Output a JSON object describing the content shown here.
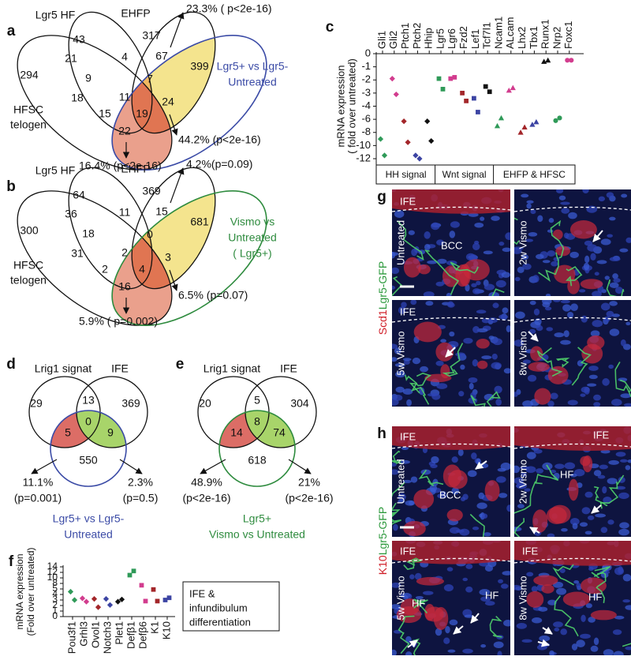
{
  "panels": {
    "a": {
      "label": "a",
      "sets": {
        "hf": "Lgr5 HF",
        "ehfp": "EHFP",
        "hfsc": [
          "HFSC",
          "telogen"
        ],
        "comparison": [
          "Lgr5+ vs Lgr5-",
          "Untreated"
        ]
      },
      "color": "#3b4ba6",
      "regions": [
        43,
        317,
        294,
        21,
        4,
        67,
        399,
        9,
        7,
        18,
        11,
        24,
        15,
        19,
        22
      ],
      "annotations": [
        "23.3% ( p<2e-16)",
        "44.2% (p<2e-16)",
        "16.4% (p<2e-16)"
      ]
    },
    "b": {
      "label": "b",
      "sets": {
        "hf": "Lgr5 HF",
        "ehfp": "EHFP",
        "hfsc": [
          "HFSC",
          "telogen"
        ],
        "comparison": [
          "Vismo vs",
          "Untreated",
          "( Lgr5+)"
        ]
      },
      "color": "#2e8b3e",
      "regions": [
        64,
        369,
        300,
        36,
        11,
        15,
        681,
        18,
        0,
        31,
        2,
        3,
        2,
        4,
        16
      ],
      "annotations": [
        "4.2%(p=0.09)",
        "6.5% (p=0.07)",
        "5.9% ( p=0.002)"
      ]
    },
    "d": {
      "label": "d",
      "sets": {
        "lrig1": "Lrig1 signat",
        "ife": "IFE",
        "comparison": [
          "Lgr5+ vs Lgr5-",
          "Untreated"
        ]
      },
      "color": "#3b4ba6",
      "regions": [
        29,
        13,
        369,
        0,
        5,
        9,
        550
      ],
      "annotations": [
        [
          "11.1%",
          "(p=0.001)"
        ],
        [
          "2.3%",
          "(p=0.5)"
        ]
      ]
    },
    "e": {
      "label": "e",
      "sets": {
        "lrig1": "Lrig1 signat",
        "ife": "IFE",
        "comparison": [
          "Lgr5+",
          "Vismo vs Untreated"
        ]
      },
      "color": "#2e8b3e",
      "regions": [
        20,
        5,
        304,
        8,
        14,
        74,
        618
      ],
      "annotations": [
        [
          "48.9%",
          "(p<2e-16)"
        ],
        [
          "21%",
          "(p<2e-16)"
        ]
      ]
    },
    "g": {
      "label": "g",
      "stain": [
        "Scd1",
        "Lgr5-GFP"
      ],
      "stain_colors": [
        "#d0202a",
        "#2e9a3e"
      ],
      "tiles": [
        {
          "condition": "Untreated",
          "labels": [
            "IFE",
            "BCC"
          ]
        },
        {
          "condition": "2w Vismo",
          "labels": []
        },
        {
          "condition": "5w Vismo",
          "labels": [
            "IFE"
          ]
        },
        {
          "condition": "8w Vismo",
          "labels": []
        }
      ]
    },
    "h": {
      "label": "h",
      "stain": [
        "K10",
        "Lgr5-GFP"
      ],
      "stain_colors": [
        "#d0202a",
        "#2e9a3e"
      ],
      "tiles": [
        {
          "condition": "Untreated",
          "labels": [
            "IFE",
            "BCC"
          ]
        },
        {
          "condition": "2w Vismo",
          "labels": [
            "IFE",
            "HF"
          ]
        },
        {
          "condition": "5w Vismo",
          "labels": [
            "IFE",
            "HF",
            "HF"
          ]
        },
        {
          "condition": "8w Vismo",
          "labels": [
            "IFE",
            "HF"
          ]
        }
      ]
    }
  },
  "chart_data": [
    {
      "type": "dot",
      "label": "c",
      "y_label": [
        "mRNA expression",
        "( fold over untreated)"
      ],
      "categories": [
        "Gli1",
        "Gli2",
        "Ptch1",
        "Ptch2",
        "Hhip",
        "Lgr5",
        "Lgr6",
        "Fzd2",
        "Lef1",
        "Tcf7l1",
        "Ncam1",
        "ALcam",
        "Lhx2",
        "Tbx1",
        "Runx1",
        "Nrp2",
        "Foxc1"
      ],
      "values": [
        [
          -9,
          -11.5
        ],
        [
          -1.9,
          -3.1
        ],
        [
          -6.3,
          -9.5
        ],
        [
          -11.5,
          -12
        ],
        [
          -6.3,
          -9.3
        ],
        [
          -1.9,
          -2.7
        ],
        [
          -1.9,
          -1.8
        ],
        [
          -3,
          -3.6
        ],
        [
          -3.4,
          -4.9
        ],
        [
          -2.5,
          -2.9
        ],
        [
          -7,
          -5.8
        ],
        [
          -2.8,
          -2.6
        ],
        [
          -8,
          -7.2
        ],
        [
          -6.8,
          -6.4
        ],
        [
          -0.6,
          -0.5
        ],
        [
          -6.2,
          -5.8
        ],
        [
          -0.5,
          -0.5
        ]
      ],
      "colors": [
        "#2f9a58",
        "#d23c8e",
        "#a3262a",
        "#3c44a3",
        "#111111",
        "#2f9a58",
        "#d23c8e",
        "#a3262a",
        "#3c44a3",
        "#111111",
        "#2f9a58",
        "#d23c8e",
        "#a3262a",
        "#3c44a3",
        "#111111",
        "#2f9a58",
        "#d23c8e"
      ],
      "markers": [
        "diamond",
        "diamond",
        "diamond",
        "diamond",
        "diamond",
        "square",
        "square",
        "square",
        "square",
        "square",
        "triangle",
        "triangle",
        "triangle",
        "triangle",
        "triangle",
        "circle",
        "circle"
      ],
      "ylim": [
        0,
        -12
      ],
      "yticks": [
        0,
        -1,
        -2,
        -3,
        -4,
        -6,
        -8,
        -10,
        -12
      ],
      "y_scale": "tick-spaced",
      "groups": [
        {
          "label": "HH signal",
          "categories": [
            "Gli1",
            "Gli2",
            "Ptch1",
            "Ptch2",
            "Hhip"
          ]
        },
        {
          "label": "Wnt signal",
          "categories": [
            "Lgr5",
            "Lgr6",
            "Fzd2",
            "Lef1",
            "Tcf7l1"
          ]
        },
        {
          "label": "EHFP & HFSC",
          "categories": [
            "Ncam1",
            "ALcam",
            "Lhx2",
            "Tbx1",
            "Runx1",
            "Nrp2",
            "Foxc1"
          ]
        }
      ]
    },
    {
      "type": "dot",
      "label": "f",
      "y_label": [
        "mRNA expression",
        "(Fold over untreated)"
      ],
      "categories": [
        "Pou3f1",
        "Grhl3",
        "Ovol1",
        "Notch3",
        "Plet1",
        "Defβ1",
        "Defβ6",
        "K1",
        "K10"
      ],
      "values": [
        [
          4.5,
          3
        ],
        [
          3.3,
          2.7
        ],
        [
          3.2,
          1.7
        ],
        [
          3.2,
          2.1
        ],
        [
          2.7,
          3.1
        ],
        [
          11,
          12.5
        ],
        [
          7,
          2.8
        ],
        [
          4.9,
          2.8
        ],
        [
          3,
          3.4
        ]
      ],
      "colors": [
        "#2f9a58",
        "#d23c8e",
        "#a3262a",
        "#3c44a3",
        "#111111",
        "#2f9a58",
        "#d23c8e",
        "#a3262a",
        "#3c44a3"
      ],
      "markers": [
        "diamond",
        "diamond",
        "diamond",
        "diamond",
        "diamond",
        "square",
        "square",
        "square",
        "square"
      ],
      "ylim": [
        0,
        14
      ],
      "yticks": [
        0,
        1,
        2,
        3,
        4,
        5,
        8,
        10,
        12,
        14
      ],
      "y_scale": "tick-spaced",
      "note": [
        "IFE &",
        "infundibulum",
        "differentiation"
      ]
    }
  ]
}
